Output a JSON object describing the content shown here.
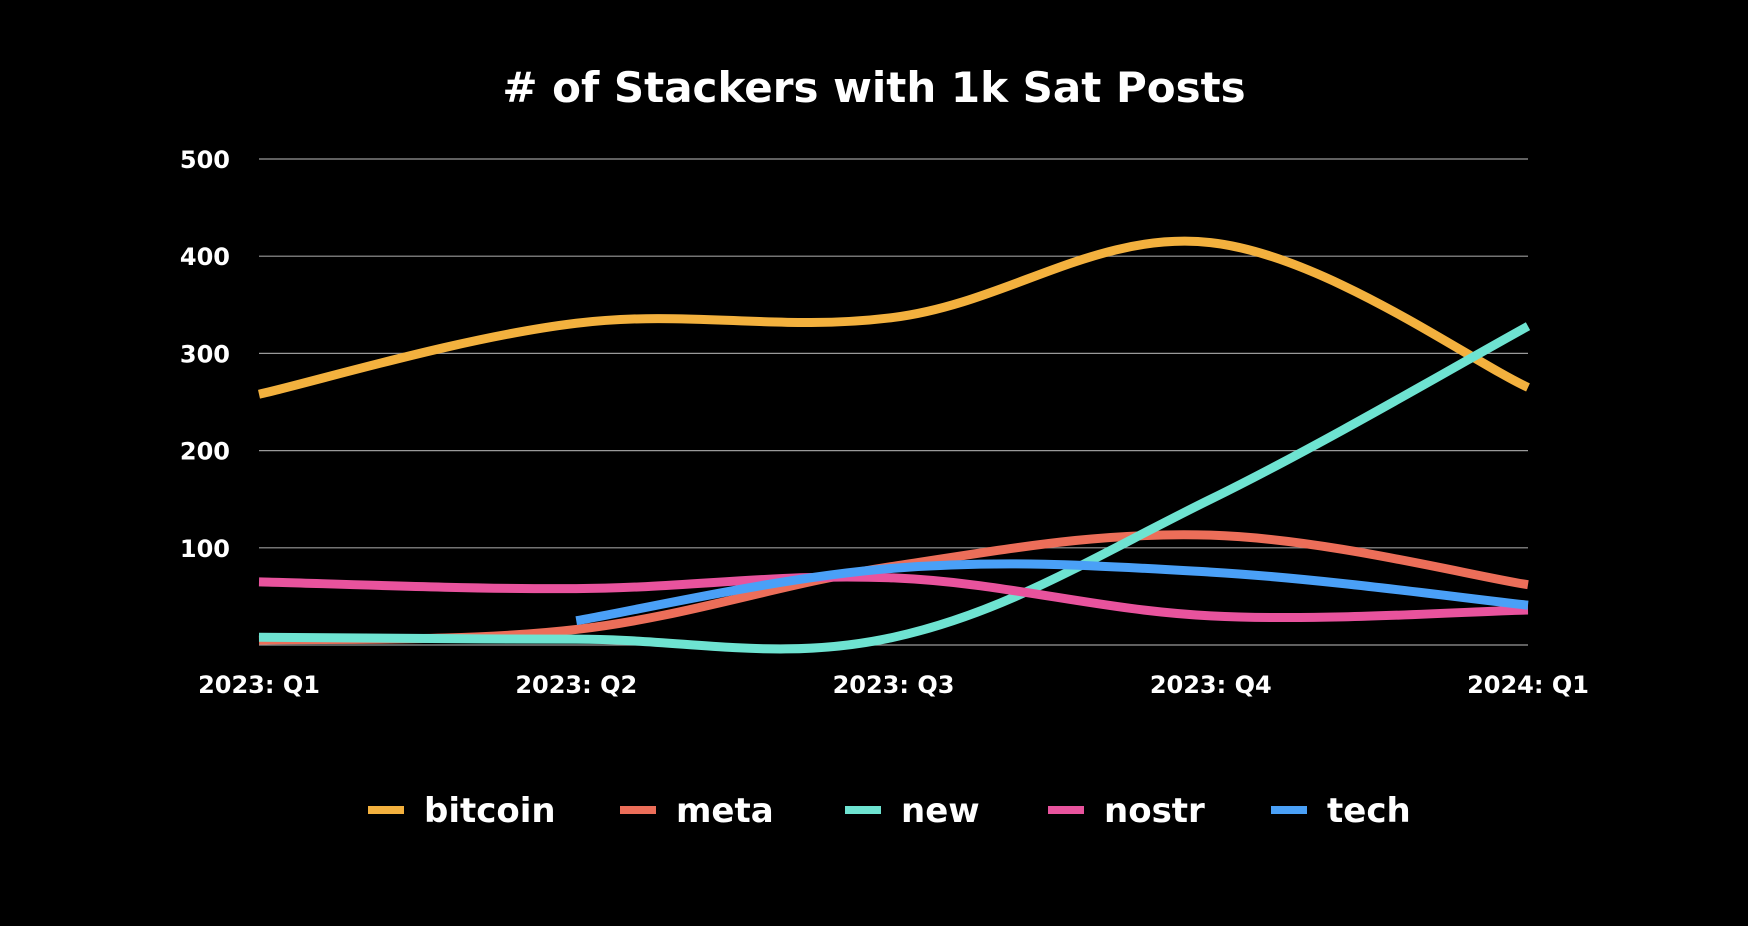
{
  "chart_data": {
    "type": "line",
    "title": "# of Stackers with 1k Sat Posts",
    "xlabel": "",
    "ylabel": "",
    "categories": [
      "2023: Q1",
      "2023: Q2",
      "2023: Q3",
      "2023: Q4",
      "2024: Q1"
    ],
    "ylim": [
      0,
      500
    ],
    "yticks": [
      100,
      200,
      300,
      400,
      500
    ],
    "grid": true,
    "legend_position": "bottom",
    "smooth": true,
    "series": [
      {
        "name": "bitcoin",
        "color": "#F3B13E",
        "values": [
          258,
          331,
          337,
          414,
          265
        ]
      },
      {
        "name": "meta",
        "color": "#EC6E59",
        "values": [
          5,
          16,
          81,
          113,
          62
        ]
      },
      {
        "name": "new",
        "color": "#6EE3D1",
        "values": [
          8,
          6,
          8,
          150,
          328
        ]
      },
      {
        "name": "nostr",
        "color": "#E8539D",
        "values": [
          65,
          58,
          69,
          30,
          36
        ]
      },
      {
        "name": "tech",
        "color": "#4AA0F7",
        "values": [
          null,
          25,
          79,
          75,
          41
        ]
      }
    ]
  }
}
